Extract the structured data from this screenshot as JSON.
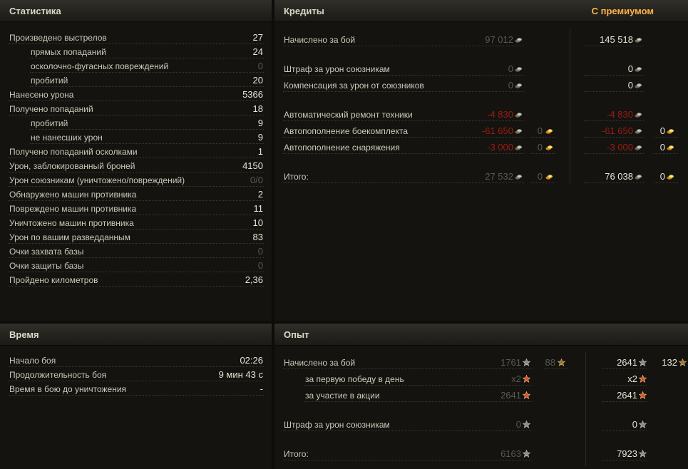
{
  "stats": {
    "title": "Статистика",
    "rows": [
      {
        "label": "Произведено выстрелов",
        "value": "27",
        "indent": false,
        "zero": false
      },
      {
        "label": "прямых попаданий",
        "value": "24",
        "indent": true,
        "zero": false
      },
      {
        "label": "осколочно-фугасных повреждений",
        "value": "0",
        "indent": true,
        "zero": true
      },
      {
        "label": "пробитий",
        "value": "20",
        "indent": true,
        "zero": false
      },
      {
        "label": "Нанесено урона",
        "value": "5366",
        "indent": false,
        "zero": false
      },
      {
        "label": "Получено попаданий",
        "value": "18",
        "indent": false,
        "zero": false
      },
      {
        "label": "пробитий",
        "value": "9",
        "indent": true,
        "zero": false
      },
      {
        "label": "не нанесших урон",
        "value": "9",
        "indent": true,
        "zero": false
      },
      {
        "label": "Получено попаданий осколками",
        "value": "1",
        "indent": false,
        "zero": false
      },
      {
        "label": "Урон, заблокированный броней",
        "value": "4150",
        "indent": false,
        "zero": false
      },
      {
        "label": "Урон союзникам (уничтожено/повреждений)",
        "value": "0/0",
        "indent": false,
        "zero": true
      },
      {
        "label": "Обнаружено машин противника",
        "value": "2",
        "indent": false,
        "zero": false
      },
      {
        "label": "Повреждено машин противника",
        "value": "11",
        "indent": false,
        "zero": false
      },
      {
        "label": "Уничтожено машин противника",
        "value": "10",
        "indent": false,
        "zero": false
      },
      {
        "label": "Урон по вашим разведданным",
        "value": "83",
        "indent": false,
        "zero": false
      },
      {
        "label": "Очки захвата базы",
        "value": "0",
        "indent": false,
        "zero": true
      },
      {
        "label": "Очки защиты базы",
        "value": "0",
        "indent": false,
        "zero": true
      },
      {
        "label": "Пройдено километров",
        "value": "2,36",
        "indent": false,
        "zero": false
      }
    ]
  },
  "credits": {
    "title": "Кредиты",
    "premium_label": "С премиумом",
    "rows": [
      {
        "label": "Начислено за бой",
        "std": "97 012",
        "std_zero": true,
        "std_gold": null,
        "prem": "145 518",
        "prem_neg": false,
        "prem_gold": null,
        "std_neg": false
      },
      {
        "label": "Штраф за урон союзникам",
        "std": "0",
        "std_zero": true,
        "std_gold": null,
        "prem": "0",
        "prem_neg": false,
        "prem_gold": null,
        "std_neg": false
      },
      {
        "label": "Компенсация за урон от союзников",
        "std": "0",
        "std_zero": true,
        "std_gold": null,
        "prem": "0",
        "prem_neg": false,
        "prem_gold": null,
        "std_neg": false
      },
      {
        "label": "Автоматический ремонт техники",
        "std": "-4 830",
        "std_zero": false,
        "std_gold": null,
        "prem": "-4 830",
        "prem_neg": true,
        "prem_gold": null,
        "std_neg": true
      },
      {
        "label": "Автопополнение боекомплекта",
        "std": "-61 650",
        "std_zero": false,
        "std_gold": "0",
        "prem": "-61 650",
        "prem_neg": true,
        "prem_gold": "0",
        "std_neg": true
      },
      {
        "label": "Автопополнение снаряжения",
        "std": "-3 000",
        "std_zero": false,
        "std_gold": "0",
        "prem": "-3 000",
        "prem_neg": true,
        "prem_gold": "0",
        "std_neg": true
      },
      {
        "label": "Итого:",
        "std": "27 532",
        "std_zero": true,
        "std_gold": "0",
        "prem": "76 038",
        "prem_neg": false,
        "prem_gold": "0",
        "std_neg": false
      }
    ]
  },
  "time": {
    "title": "Время",
    "rows": [
      {
        "label": "Начало боя",
        "value": "02:26"
      },
      {
        "label": "Продолжительность боя",
        "value": "9 мин 43 с"
      },
      {
        "label": "Время в бою до уничтожения",
        "value": "-"
      }
    ]
  },
  "exp": {
    "title": "Опыт",
    "rows": [
      {
        "label": "Начислено за бой",
        "indent": false,
        "std": "1761",
        "std_free": "88",
        "prem": "2641",
        "prem_free": "132",
        "icon": "star",
        "prem_icon": "star"
      },
      {
        "label": "за первую победу в день",
        "indent": true,
        "std": "x2",
        "std_free": null,
        "prem": "x2",
        "prem_free": null,
        "icon": "star-bonus",
        "prem_icon": "star-bonus"
      },
      {
        "label": "за участие в акции",
        "indent": true,
        "std": "2641",
        "std_free": null,
        "prem": "2641",
        "prem_free": null,
        "icon": "star-bonus",
        "prem_icon": "star-bonus"
      },
      {
        "label": "Штраф за урон союзникам",
        "indent": false,
        "std": "0",
        "std_free": null,
        "prem": "0",
        "prem_free": null,
        "icon": "star",
        "prem_icon": "star"
      },
      {
        "label": "Итого:",
        "indent": false,
        "std": "6163",
        "std_free": null,
        "prem": "7923",
        "prem_free": null,
        "icon": "star",
        "prem_icon": "star"
      }
    ]
  },
  "colors": {
    "premium": "#ffb347",
    "negative": "#9e1b10",
    "value": "#e9e4d4",
    "dim": "#5a5850"
  },
  "icons": {
    "credit": "silver-coin-icon",
    "gold": "gold-coin-icon",
    "xp": "star-icon",
    "free_xp": "free-xp-star-icon",
    "xp_bonus": "bonus-star-icon"
  }
}
